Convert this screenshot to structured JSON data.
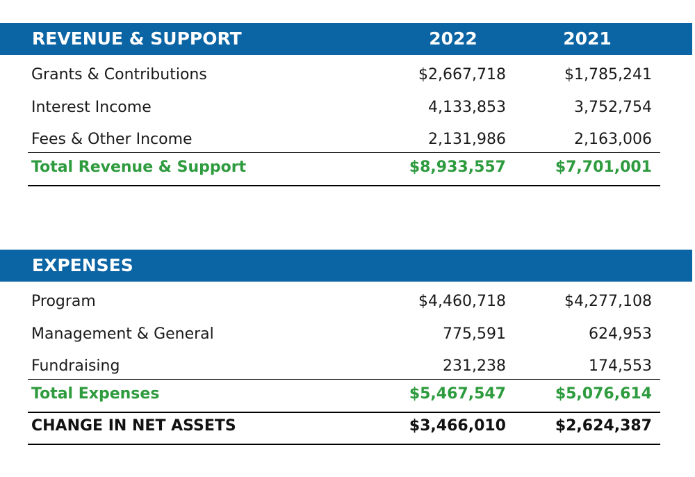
{
  "revenue": {
    "header": "REVENUE & SUPPORT",
    "year1": "2022",
    "year2": "2021",
    "rows": [
      {
        "label": "Grants & Contributions",
        "y2022": "$2,667,718",
        "y2021": "$1,785,241"
      },
      {
        "label": "Interest Income",
        "y2022": "4,133,853",
        "y2021": "3,752,754"
      },
      {
        "label": "Fees & Other Income",
        "y2022": "2,131,986",
        "y2021": "2,163,006"
      }
    ],
    "total": {
      "label": "Total Revenue & Support",
      "y2022": "$8,933,557",
      "y2021": "$7,701,001"
    }
  },
  "expenses": {
    "header": "EXPENSES",
    "rows": [
      {
        "label": "Program",
        "y2022": "$4,460,718",
        "y2021": "$4,277,108"
      },
      {
        "label": "Management & General",
        "y2022": "775,591",
        "y2021": "624,953"
      },
      {
        "label": "Fundraising",
        "y2022": "231,238",
        "y2021": "174,553"
      }
    ],
    "total": {
      "label": "Total Expenses",
      "y2022": "$5,467,547",
      "y2021": "$5,076,614"
    }
  },
  "net_assets": {
    "label": "CHANGE IN NET ASSETS",
    "y2022": "$3,466,010",
    "y2021": "$2,624,387"
  },
  "colors": {
    "header_band": "#0b64a3",
    "total_text": "#2e9b3e"
  }
}
